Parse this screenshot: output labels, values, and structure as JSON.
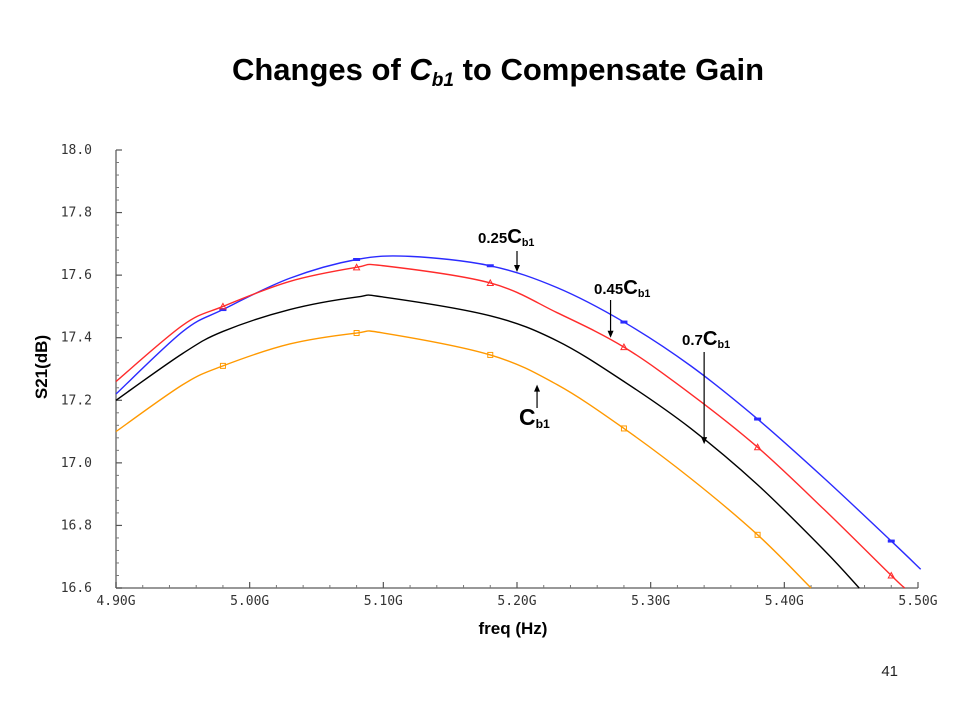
{
  "slide": {
    "title_prefix": "Changes of ",
    "title_var": "C",
    "title_sub": "b1",
    "title_suffix": " to Compensate Gain",
    "page_number": "41"
  },
  "chart_data": {
    "type": "line",
    "xlabel": "freq (Hz)",
    "ylabel": "S21(dB)",
    "xlim": [
      4.9,
      5.5
    ],
    "ylim": [
      16.6,
      18.0
    ],
    "x_ticks": [
      4.9,
      5.0,
      5.1,
      5.2,
      5.3,
      5.4,
      5.5
    ],
    "x_tick_labels": [
      "4.90G",
      "5.00G",
      "5.10G",
      "5.20G",
      "5.30G",
      "5.40G",
      "5.50G"
    ],
    "y_ticks": [
      16.6,
      16.8,
      17.0,
      17.2,
      17.4,
      17.6,
      17.8,
      18.0
    ],
    "y_tick_labels": [
      "16.6",
      "16.8",
      "17.0",
      "17.2",
      "17.4",
      "17.6",
      "17.8",
      "18.0"
    ],
    "grid": false,
    "series": [
      {
        "color": "#2b2bff",
        "marker": "dash",
        "x": [
          4.9,
          4.95,
          4.98,
          5.03,
          5.08,
          5.12,
          5.18,
          5.23,
          5.28,
          5.33,
          5.38,
          5.43,
          5.48,
          5.502
        ],
        "y": [
          17.22,
          17.42,
          17.49,
          17.59,
          17.65,
          17.66,
          17.63,
          17.56,
          17.45,
          17.31,
          17.14,
          16.95,
          16.75,
          16.66
        ]
      },
      {
        "color": "#ff2b2b",
        "marker": "triangle",
        "x": [
          4.9,
          4.95,
          4.98,
          5.03,
          5.08,
          5.1,
          5.18,
          5.23,
          5.28,
          5.33,
          5.38,
          5.43,
          5.48,
          5.49
        ],
        "y": [
          17.26,
          17.44,
          17.5,
          17.58,
          17.625,
          17.63,
          17.575,
          17.48,
          17.37,
          17.22,
          17.05,
          16.85,
          16.64,
          16.6
        ]
      },
      {
        "color": "#000000",
        "marker": "none",
        "x": [
          4.9,
          4.95,
          4.98,
          5.03,
          5.08,
          5.1,
          5.18,
          5.23,
          5.28,
          5.33,
          5.38,
          5.43,
          5.456
        ],
        "y": [
          17.2,
          17.35,
          17.42,
          17.49,
          17.53,
          17.53,
          17.47,
          17.39,
          17.26,
          17.11,
          16.93,
          16.72,
          16.6
        ]
      },
      {
        "color": "#ff9900",
        "marker": "square",
        "x": [
          4.9,
          4.95,
          4.98,
          5.03,
          5.08,
          5.1,
          5.18,
          5.23,
          5.28,
          5.33,
          5.38,
          5.42
        ],
        "y": [
          17.1,
          17.25,
          17.31,
          17.38,
          17.415,
          17.415,
          17.345,
          17.25,
          17.11,
          16.95,
          16.77,
          16.6
        ]
      }
    ],
    "annotations": [
      {
        "pre": "0.25",
        "var": "C",
        "sub": "b1",
        "arrow_x": 5.2,
        "arrow_y": 17.61,
        "dir": "down"
      },
      {
        "pre": "0.45",
        "var": "C",
        "sub": "b1",
        "arrow_x": 5.27,
        "arrow_y": 17.4,
        "dir": "down"
      },
      {
        "pre": "0.7",
        "var": "C",
        "sub": "b1",
        "arrow_x": 5.34,
        "arrow_y": 17.06,
        "dir": "down"
      },
      {
        "pre": "",
        "var": "C",
        "sub": "b1",
        "arrow_x": 5.215,
        "arrow_y": 17.25,
        "dir": "up"
      }
    ]
  }
}
